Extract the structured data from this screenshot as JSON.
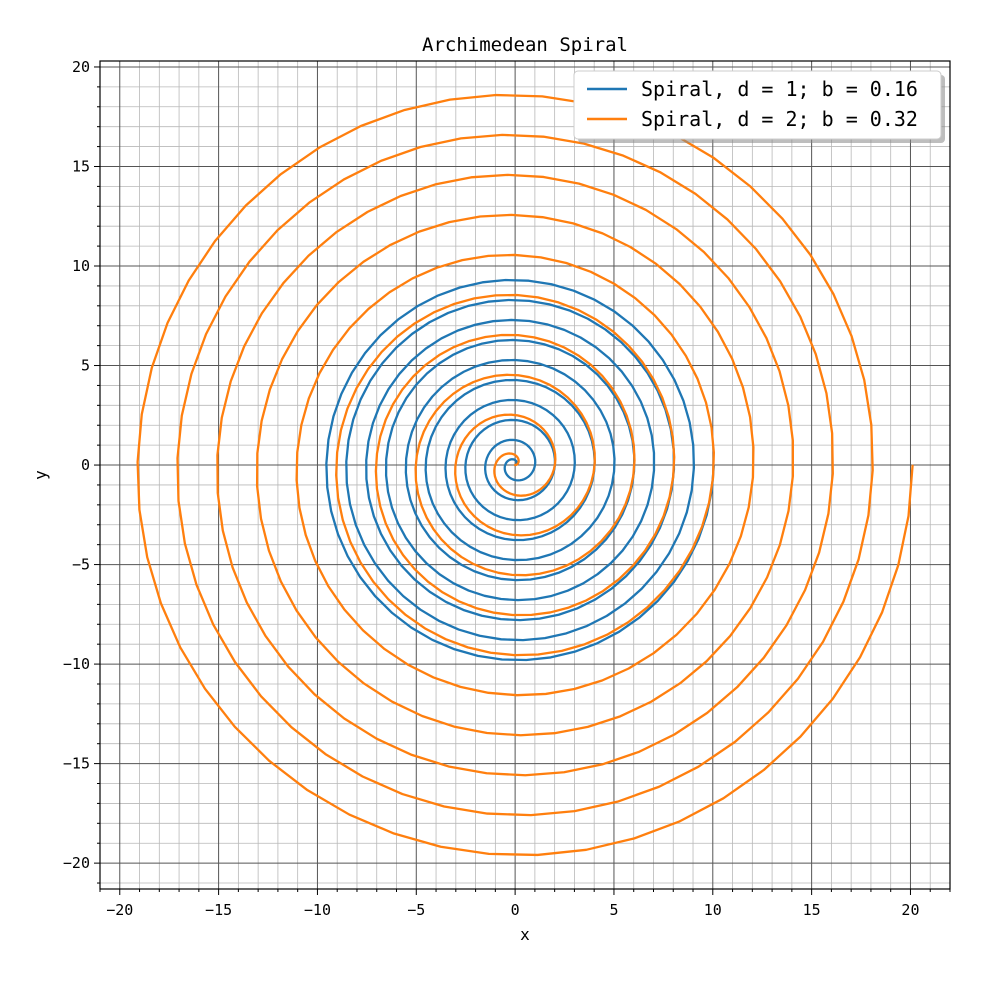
{
  "chart_data": {
    "type": "line",
    "title": "Archimedean Spiral",
    "xlabel": "x",
    "ylabel": "y",
    "xlim": [
      -21,
      22
    ],
    "ylim": [
      -21.3,
      20.3
    ],
    "grid": {
      "major": true,
      "minor": true
    },
    "legend_position": "top-right",
    "x_ticks": [
      -20,
      -15,
      -10,
      -5,
      0,
      5,
      10,
      15,
      20
    ],
    "y_ticks": [
      -20,
      -15,
      -10,
      -5,
      0,
      5,
      10,
      15,
      20
    ],
    "x_tick_labels": [
      "−20",
      "−15",
      "−10",
      "−5",
      "0",
      "5",
      "10",
      "15",
      "20"
    ],
    "y_tick_labels": [
      "−20",
      "−15",
      "−10",
      "−5",
      "0",
      "5",
      "10",
      "15",
      "20"
    ],
    "series": [
      {
        "name": "Spiral, d = 1; b = 0.16",
        "color": "#1f77b4",
        "equation": "r = b·θ",
        "b": 0.16,
        "theta_range": [
          0,
          62.83
        ],
        "turns": 10,
        "samples": 500,
        "end_point": [
          10,
          0
        ]
      },
      {
        "name": "Spiral, d = 2; b = 0.32",
        "color": "#ff7f0e",
        "equation": "r = b·θ",
        "b": 0.32,
        "theta_range": [
          0,
          62.83
        ],
        "turns": 10,
        "samples": 500,
        "end_point": [
          20,
          0
        ]
      }
    ]
  }
}
